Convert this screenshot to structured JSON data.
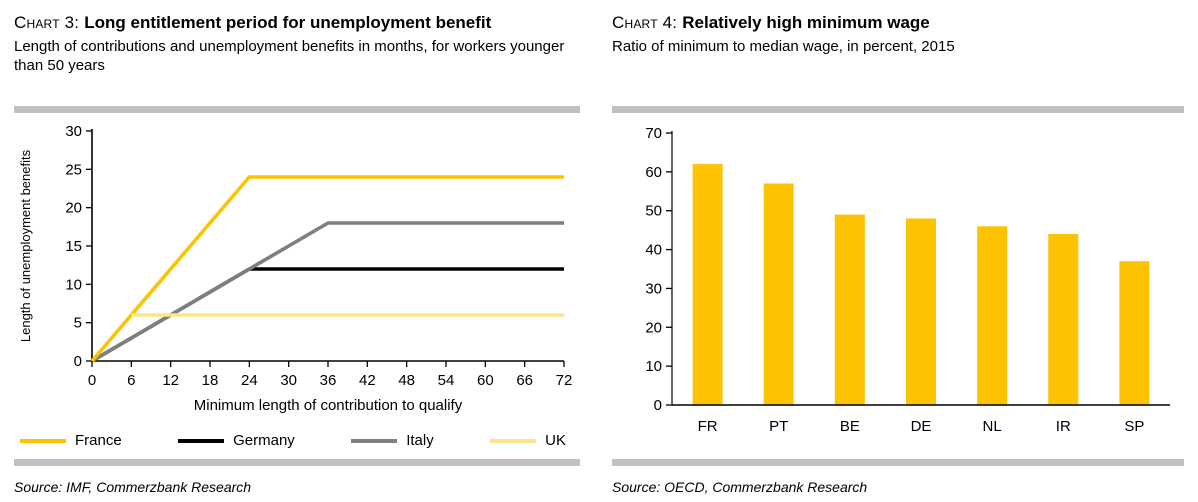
{
  "colors": {
    "accent_gold": "#FDC300",
    "light_yellow": "#FFE38A",
    "series_gray": "#7F7F7F",
    "series_black": "#000000",
    "divider": "#BFBFBF"
  },
  "chart_data": [
    {
      "type": "line",
      "title_prefix": "Chart 3:",
      "title_bold": "Long entitlement period for unemployment benefit",
      "subtitle": "Length of contributions and unemployment benefits in months, for workers younger than 50 years",
      "xlabel": "Minimum length of contribution to qualify",
      "ylabel": "Length of unemployment benefits",
      "xlim": [
        0,
        72
      ],
      "ylim": [
        0,
        30
      ],
      "xticks": [
        0,
        6,
        12,
        18,
        24,
        30,
        36,
        42,
        48,
        54,
        60,
        66,
        72
      ],
      "yticks": [
        0,
        5,
        10,
        15,
        20,
        25,
        30
      ],
      "grid": false,
      "legend_position": "bottom",
      "draw_order": [
        1,
        2,
        0,
        3
      ],
      "series": [
        {
          "name": "France",
          "color": "#FDC300",
          "points": [
            [
              0,
              0
            ],
            [
              24,
              24
            ],
            [
              72,
              24
            ]
          ]
        },
        {
          "name": "Germany",
          "color": "#000000",
          "points": [
            [
              0,
              0
            ],
            [
              24,
              12
            ],
            [
              72,
              12
            ]
          ]
        },
        {
          "name": "Italy",
          "color": "#7F7F7F",
          "points": [
            [
              0,
              0
            ],
            [
              36,
              18
            ],
            [
              72,
              18
            ]
          ]
        },
        {
          "name": "UK",
          "color": "#FFE38A",
          "points": [
            [
              6,
              6
            ],
            [
              72,
              6
            ]
          ]
        }
      ],
      "source": "Source: IMF, Commerzbank Research"
    },
    {
      "type": "bar",
      "title_prefix": "Chart 4:",
      "title_bold": "Relatively high minimum wage",
      "subtitle": "Ratio of minimum to median wage, in percent, 2015",
      "categories": [
        "FR",
        "PT",
        "BE",
        "DE",
        "NL",
        "IR",
        "SP"
      ],
      "values": [
        62,
        57,
        49,
        48,
        46,
        44,
        37
      ],
      "ylim": [
        0,
        70
      ],
      "yticks": [
        0,
        10,
        20,
        30,
        40,
        50,
        60,
        70
      ],
      "bar_color": "#FDC300",
      "grid": false,
      "source": "Source: OECD, Commerzbank Research"
    }
  ]
}
